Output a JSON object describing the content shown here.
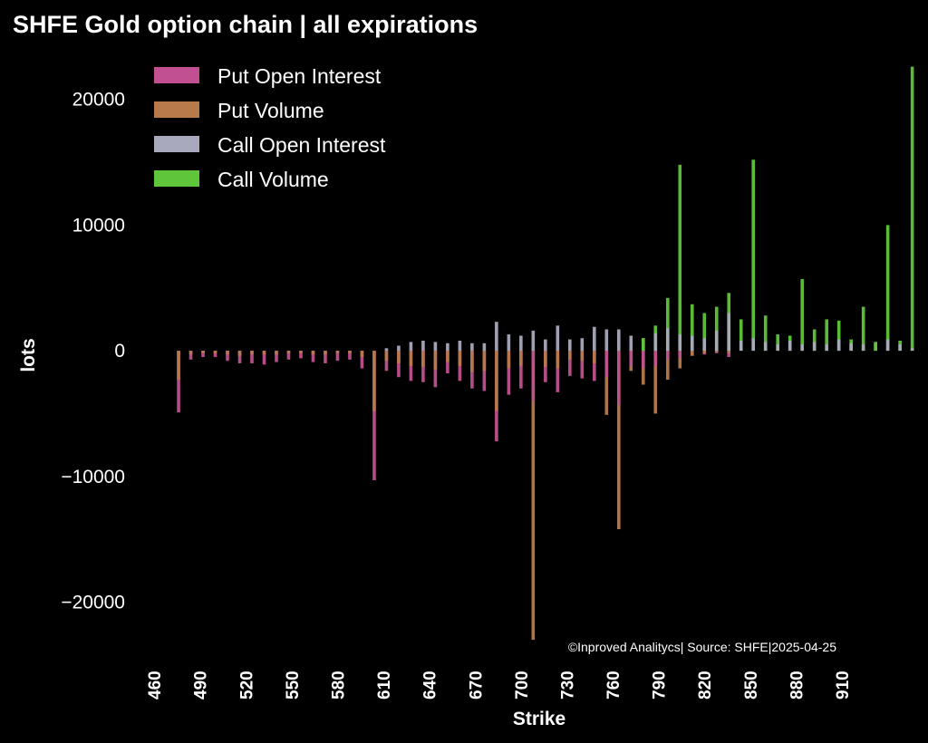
{
  "chart_data": {
    "type": "bar",
    "title": "SHFE Gold option chain | all expirations",
    "xlabel": "Strike",
    "ylabel": "lots",
    "annotation": "©Inproved Analitycs| Source: SHFE|2025-04-25",
    "ylim": [
      -24000,
      22500
    ],
    "xlim": [
      457,
      958
    ],
    "yticks": [
      -20000,
      -10000,
      0,
      10000,
      20000
    ],
    "ytick_labels": [
      "−20000",
      "−10000",
      "0",
      "10000",
      "20000"
    ],
    "xticks": [
      460,
      490,
      520,
      550,
      580,
      610,
      640,
      670,
      700,
      730,
      760,
      790,
      820,
      850,
      880,
      910
    ],
    "grid": false,
    "legend_position": "top-left",
    "colors": {
      "put_oi": "#c0508f",
      "put_volume": "#b87a4a",
      "call_oi": "#a9a9bd",
      "call_volume": "#5fc53a"
    },
    "x": [
      476,
      484,
      492,
      500,
      508,
      516,
      524,
      532,
      540,
      548,
      556,
      564,
      572,
      580,
      588,
      596,
      604,
      612,
      620,
      628,
      636,
      644,
      652,
      660,
      668,
      676,
      684,
      692,
      700,
      708,
      716,
      724,
      732,
      740,
      748,
      756,
      764,
      772,
      780,
      788,
      796,
      804,
      812,
      820,
      828,
      836,
      844,
      852,
      860,
      868,
      876,
      884,
      892,
      900,
      908,
      916,
      924,
      932,
      940,
      948,
      956
    ],
    "series": [
      {
        "name": "Put Open Interest",
        "key": "put_oi",
        "values": [
          -4900,
          -700,
          -500,
          -500,
          -800,
          -1000,
          -1000,
          -1100,
          -900,
          -700,
          -600,
          -900,
          -1000,
          -800,
          -700,
          -1400,
          -10300,
          -1600,
          -2100,
          -2400,
          -2500,
          -2900,
          -1800,
          -2400,
          -3000,
          -3200,
          -7200,
          -3500,
          -3000,
          -4000,
          -2500,
          -3300,
          -2000,
          -2200,
          -2400,
          -2100,
          -4300,
          -1200,
          -1400,
          -1200,
          -700,
          -600,
          -400,
          -300,
          -200,
          -500,
          0,
          0,
          0,
          0,
          0,
          0,
          0,
          0,
          0,
          0,
          0,
          0,
          0,
          0,
          0
        ]
      },
      {
        "name": "Put Volume",
        "key": "put_volume",
        "values": [
          -2300,
          -300,
          -200,
          -200,
          -300,
          -400,
          -300,
          -300,
          -300,
          -200,
          -200,
          -300,
          -300,
          -200,
          -200,
          -500,
          -4800,
          -800,
          -1000,
          -1200,
          -1300,
          -1500,
          -900,
          -1200,
          -1700,
          -1600,
          -4800,
          -1400,
          -1200,
          -23000,
          -1300,
          -1400,
          -700,
          -800,
          -1000,
          -5100,
          -14200,
          -1600,
          -2700,
          -5000,
          -2300,
          -1400,
          -400,
          -200,
          -100,
          -200,
          0,
          0,
          0,
          0,
          0,
          0,
          0,
          0,
          0,
          0,
          0,
          0,
          0,
          0,
          0
        ]
      },
      {
        "name": "Call Open Interest",
        "key": "call_oi",
        "values": [
          0,
          0,
          0,
          0,
          0,
          0,
          0,
          0,
          0,
          0,
          0,
          0,
          0,
          0,
          0,
          0,
          0,
          200,
          400,
          700,
          800,
          700,
          600,
          800,
          600,
          600,
          2300,
          1300,
          1200,
          1600,
          900,
          2000,
          900,
          1000,
          1900,
          1700,
          1700,
          1200,
          1000,
          1400,
          1800,
          1300,
          1200,
          1000,
          1600,
          3000,
          800,
          1000,
          700,
          500,
          800,
          500,
          700,
          500,
          900,
          600,
          500,
          700,
          900,
          500,
          200
        ]
      },
      {
        "name": "Call Volume",
        "key": "call_volume",
        "values": [
          0,
          0,
          0,
          0,
          0,
          0,
          0,
          0,
          0,
          0,
          0,
          0,
          0,
          0,
          0,
          0,
          0,
          0,
          0,
          0,
          0,
          0,
          0,
          0,
          0,
          0,
          0,
          0,
          0,
          0,
          0,
          0,
          0,
          0,
          0,
          0,
          0,
          0,
          1000,
          2000,
          4200,
          14800,
          3700,
          3000,
          3500,
          4600,
          2500,
          15200,
          2800,
          1300,
          1200,
          5700,
          1700,
          2500,
          2400,
          900,
          3500,
          700,
          10000,
          800,
          22600
        ]
      }
    ]
  }
}
